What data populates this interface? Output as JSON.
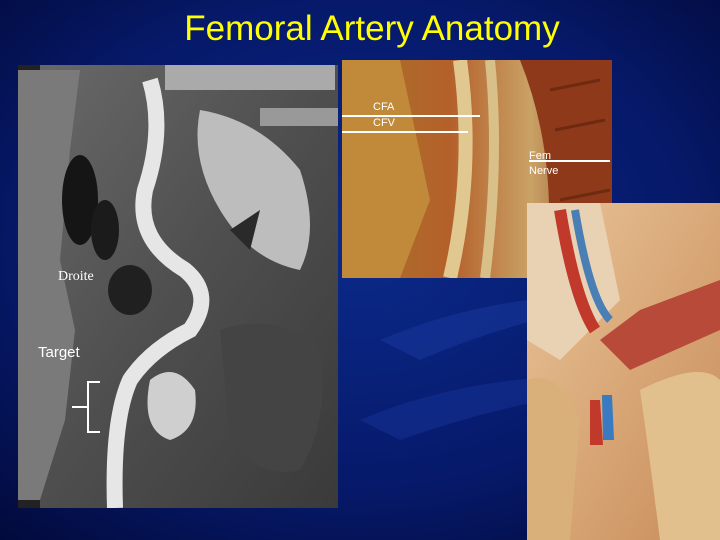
{
  "title": "Femoral Artery Anatomy",
  "ct_image": {
    "side_label": "Droite",
    "annotation": "Target"
  },
  "cadaver_image": {
    "labels": [
      "CFA",
      "CFV"
    ],
    "nerve_label": [
      "Fem",
      "Nerve"
    ]
  }
}
